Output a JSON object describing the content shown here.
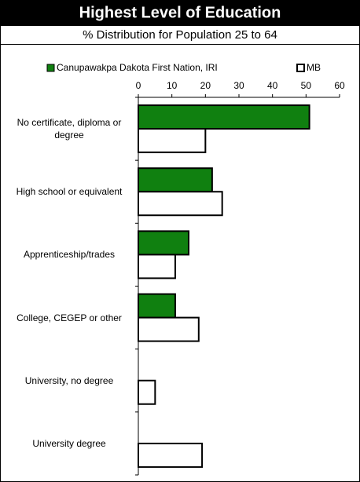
{
  "chart_data": {
    "type": "hbar",
    "title": "Highest Level of Education",
    "subtitle": "% Distribution for Population 25 to 64",
    "categories": [
      "No certificate, diploma or degree",
      "High school or equivalent",
      "Apprenticeship/trades",
      "College, CEGEP or other",
      "University, no degree",
      "University degree"
    ],
    "series": [
      {
        "name": "Canupawakpa Dakota First Nation, IRI",
        "color": "#108010",
        "values": [
          51,
          22,
          15,
          11,
          null,
          null
        ]
      },
      {
        "name": "MB",
        "color": "#ffffff",
        "values": [
          20,
          25,
          11,
          18,
          5,
          19
        ]
      }
    ],
    "xlim": [
      0,
      60
    ],
    "xticks": [
      0,
      10,
      20,
      30,
      40,
      50,
      60
    ]
  }
}
